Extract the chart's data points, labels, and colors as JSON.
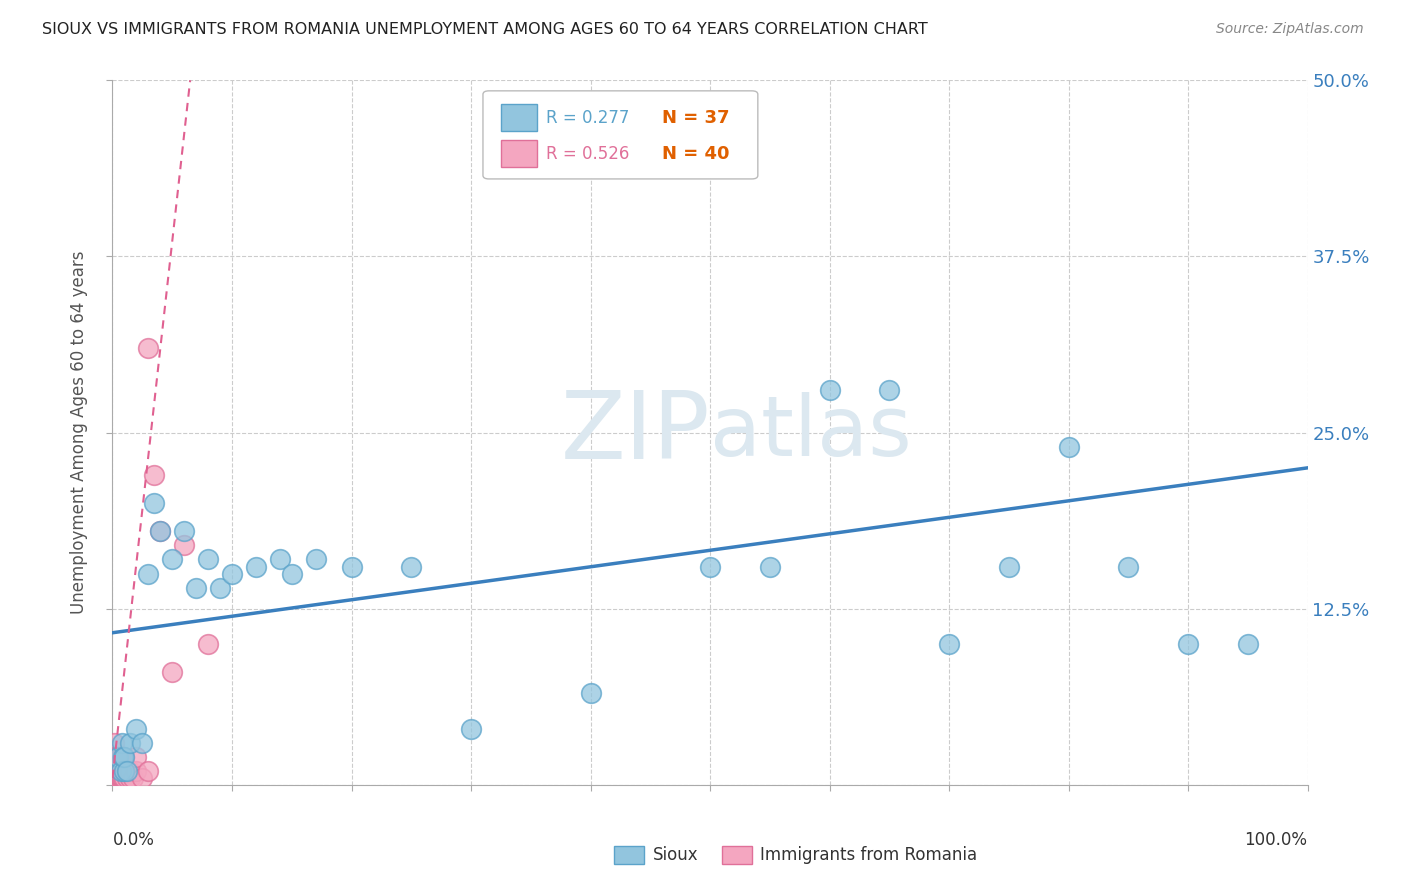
{
  "title": "SIOUX VS IMMIGRANTS FROM ROMANIA UNEMPLOYMENT AMONG AGES 60 TO 64 YEARS CORRELATION CHART",
  "source": "Source: ZipAtlas.com",
  "ylabel": "Unemployment Among Ages 60 to 64 years",
  "yticks": [
    0.0,
    0.125,
    0.25,
    0.375,
    0.5
  ],
  "ytick_labels": [
    "",
    "12.5%",
    "25.0%",
    "37.5%",
    "50.0%"
  ],
  "sioux_color": "#92c5de",
  "sioux_edge_color": "#5ba3ca",
  "romania_color": "#f4a6c0",
  "romania_edge_color": "#e07099",
  "sioux_line_color": "#3a7fbe",
  "romania_line_color": "#e06090",
  "watermark_color": "#dce8f0",
  "legend_r1_color": "#5ba3ca",
  "legend_r2_color": "#e07099",
  "legend_n_color": "#e06000",
  "sioux_x": [
    0.005,
    0.007,
    0.008,
    0.009,
    0.01,
    0.01,
    0.012,
    0.015,
    0.02,
    0.025,
    0.03,
    0.035,
    0.04,
    0.05,
    0.06,
    0.07,
    0.08,
    0.09,
    0.1,
    0.12,
    0.14,
    0.15,
    0.17,
    0.2,
    0.25,
    0.3,
    0.4,
    0.5,
    0.55,
    0.6,
    0.65,
    0.7,
    0.75,
    0.8,
    0.85,
    0.9,
    0.95
  ],
  "sioux_y": [
    0.02,
    0.01,
    0.03,
    0.02,
    0.01,
    0.02,
    0.01,
    0.03,
    0.04,
    0.03,
    0.15,
    0.2,
    0.18,
    0.16,
    0.18,
    0.14,
    0.16,
    0.14,
    0.15,
    0.155,
    0.16,
    0.15,
    0.16,
    0.155,
    0.155,
    0.04,
    0.065,
    0.155,
    0.155,
    0.28,
    0.28,
    0.1,
    0.155,
    0.24,
    0.155,
    0.1,
    0.1
  ],
  "romania_x": [
    0.001,
    0.001,
    0.001,
    0.001,
    0.002,
    0.002,
    0.002,
    0.003,
    0.003,
    0.003,
    0.004,
    0.004,
    0.005,
    0.005,
    0.005,
    0.006,
    0.006,
    0.007,
    0.007,
    0.008,
    0.008,
    0.009,
    0.01,
    0.01,
    0.01,
    0.012,
    0.013,
    0.015,
    0.015,
    0.017,
    0.02,
    0.02,
    0.025,
    0.03,
    0.03,
    0.035,
    0.04,
    0.05,
    0.06,
    0.08
  ],
  "romania_y": [
    0.005,
    0.01,
    0.02,
    0.03,
    0.005,
    0.01,
    0.02,
    0.005,
    0.01,
    0.02,
    0.005,
    0.01,
    0.005,
    0.008,
    0.02,
    0.005,
    0.02,
    0.005,
    0.015,
    0.005,
    0.02,
    0.005,
    0.005,
    0.01,
    0.02,
    0.005,
    0.01,
    0.005,
    0.01,
    0.005,
    0.01,
    0.02,
    0.005,
    0.01,
    0.31,
    0.22,
    0.18,
    0.08,
    0.17,
    0.1
  ],
  "sioux_line_x0": 0.0,
  "sioux_line_y0": 0.108,
  "sioux_line_x1": 1.0,
  "sioux_line_y1": 0.225,
  "romania_line_x0": 0.0,
  "romania_line_y0": 0.005,
  "romania_line_x1": 0.065,
  "romania_line_y1": 0.5,
  "xlim_min": 0.0,
  "xlim_max": 1.0,
  "ylim_min": 0.0,
  "ylim_max": 0.5
}
